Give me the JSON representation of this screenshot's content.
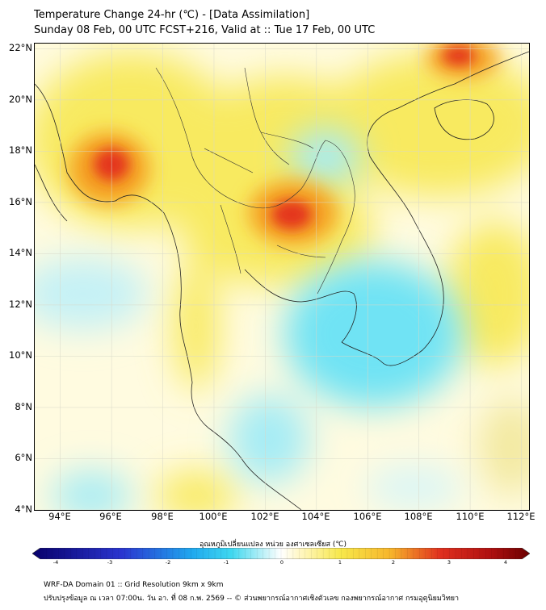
{
  "header": {
    "title_line1": "Temperature Change 24-hr (℃) - [Data Assimilation]",
    "title_line2": "Sunday 08 Feb, 00 UTC FCST+216, Valid at :: Tue 17 Feb, 00 UTC"
  },
  "map": {
    "lat_labels": [
      "22°N",
      "20°N",
      "18°N",
      "16°N",
      "14°N",
      "12°N",
      "10°N",
      "8°N",
      "6°N",
      "4°N"
    ],
    "lon_labels": [
      "94°E",
      "96°E",
      "98°E",
      "100°E",
      "102°E",
      "104°E",
      "106°E",
      "108°E",
      "110°E",
      "112°E"
    ],
    "lat_range": [
      4,
      22.2
    ],
    "lon_range": [
      93,
      112.3
    ],
    "hotspots": [
      {
        "lon": 96.0,
        "lat": 17.4,
        "value": 3.4
      },
      {
        "lon": 103.0,
        "lat": 15.4,
        "value": 3.5
      },
      {
        "lon": 109.8,
        "lat": 22.0,
        "value": 3.6
      },
      {
        "lon": 106.0,
        "lat": 18.5,
        "value": 1.2
      },
      {
        "lon": 108.5,
        "lat": 18.8,
        "value": 1.4
      },
      {
        "lon": 99.0,
        "lat": 13.5,
        "value": 1.0
      },
      {
        "lon": 95.5,
        "lat": 21.0,
        "value": 1.3
      },
      {
        "lon": 105.5,
        "lat": 12.2,
        "value": -1.2
      },
      {
        "lon": 103.8,
        "lat": 10.2,
        "value": -1.1
      },
      {
        "lon": 104.2,
        "lat": 19.2,
        "value": -0.9
      },
      {
        "lon": 101.5,
        "lat": 5.5,
        "value": -0.9
      },
      {
        "lon": 94.0,
        "lat": 12.0,
        "value": -0.6
      },
      {
        "lon": 96.0,
        "lat": 4.6,
        "value": -0.6
      },
      {
        "lon": 99.5,
        "lat": 4.5,
        "value": 1.0
      },
      {
        "lon": 111.0,
        "lat": 11.5,
        "value": 0.6
      }
    ]
  },
  "colorbar": {
    "title": "อุณหภูมิเปลี่ยนแปลง หน่วย องศาเซลเซียส (℃)",
    "ticks": [
      "-4",
      "-3",
      "-2",
      "-1",
      "0",
      "1",
      "2",
      "3",
      "4"
    ],
    "range": [
      -4,
      4
    ],
    "colors": {
      "cold_end": "#08006b",
      "cyan": "#3fd8f0",
      "white": "#ffffff",
      "yellow": "#f7e84a",
      "red": "#e0301e",
      "hot_end": "#6a0000"
    }
  },
  "footer": {
    "line1": "WRF-DA Domain 01 :: Grid Resolution 9km x 9km",
    "line2": "ปรับปรุงข้อมูล ณ เวลา 07:00น. วัน อา. ที่ 08 ก.พ. 2569 -- © ส่วนพยากรณ์อากาศเชิงตัวเลข กองพยากรณ์อากาศ กรมอุตุนิยมวิทยา"
  }
}
